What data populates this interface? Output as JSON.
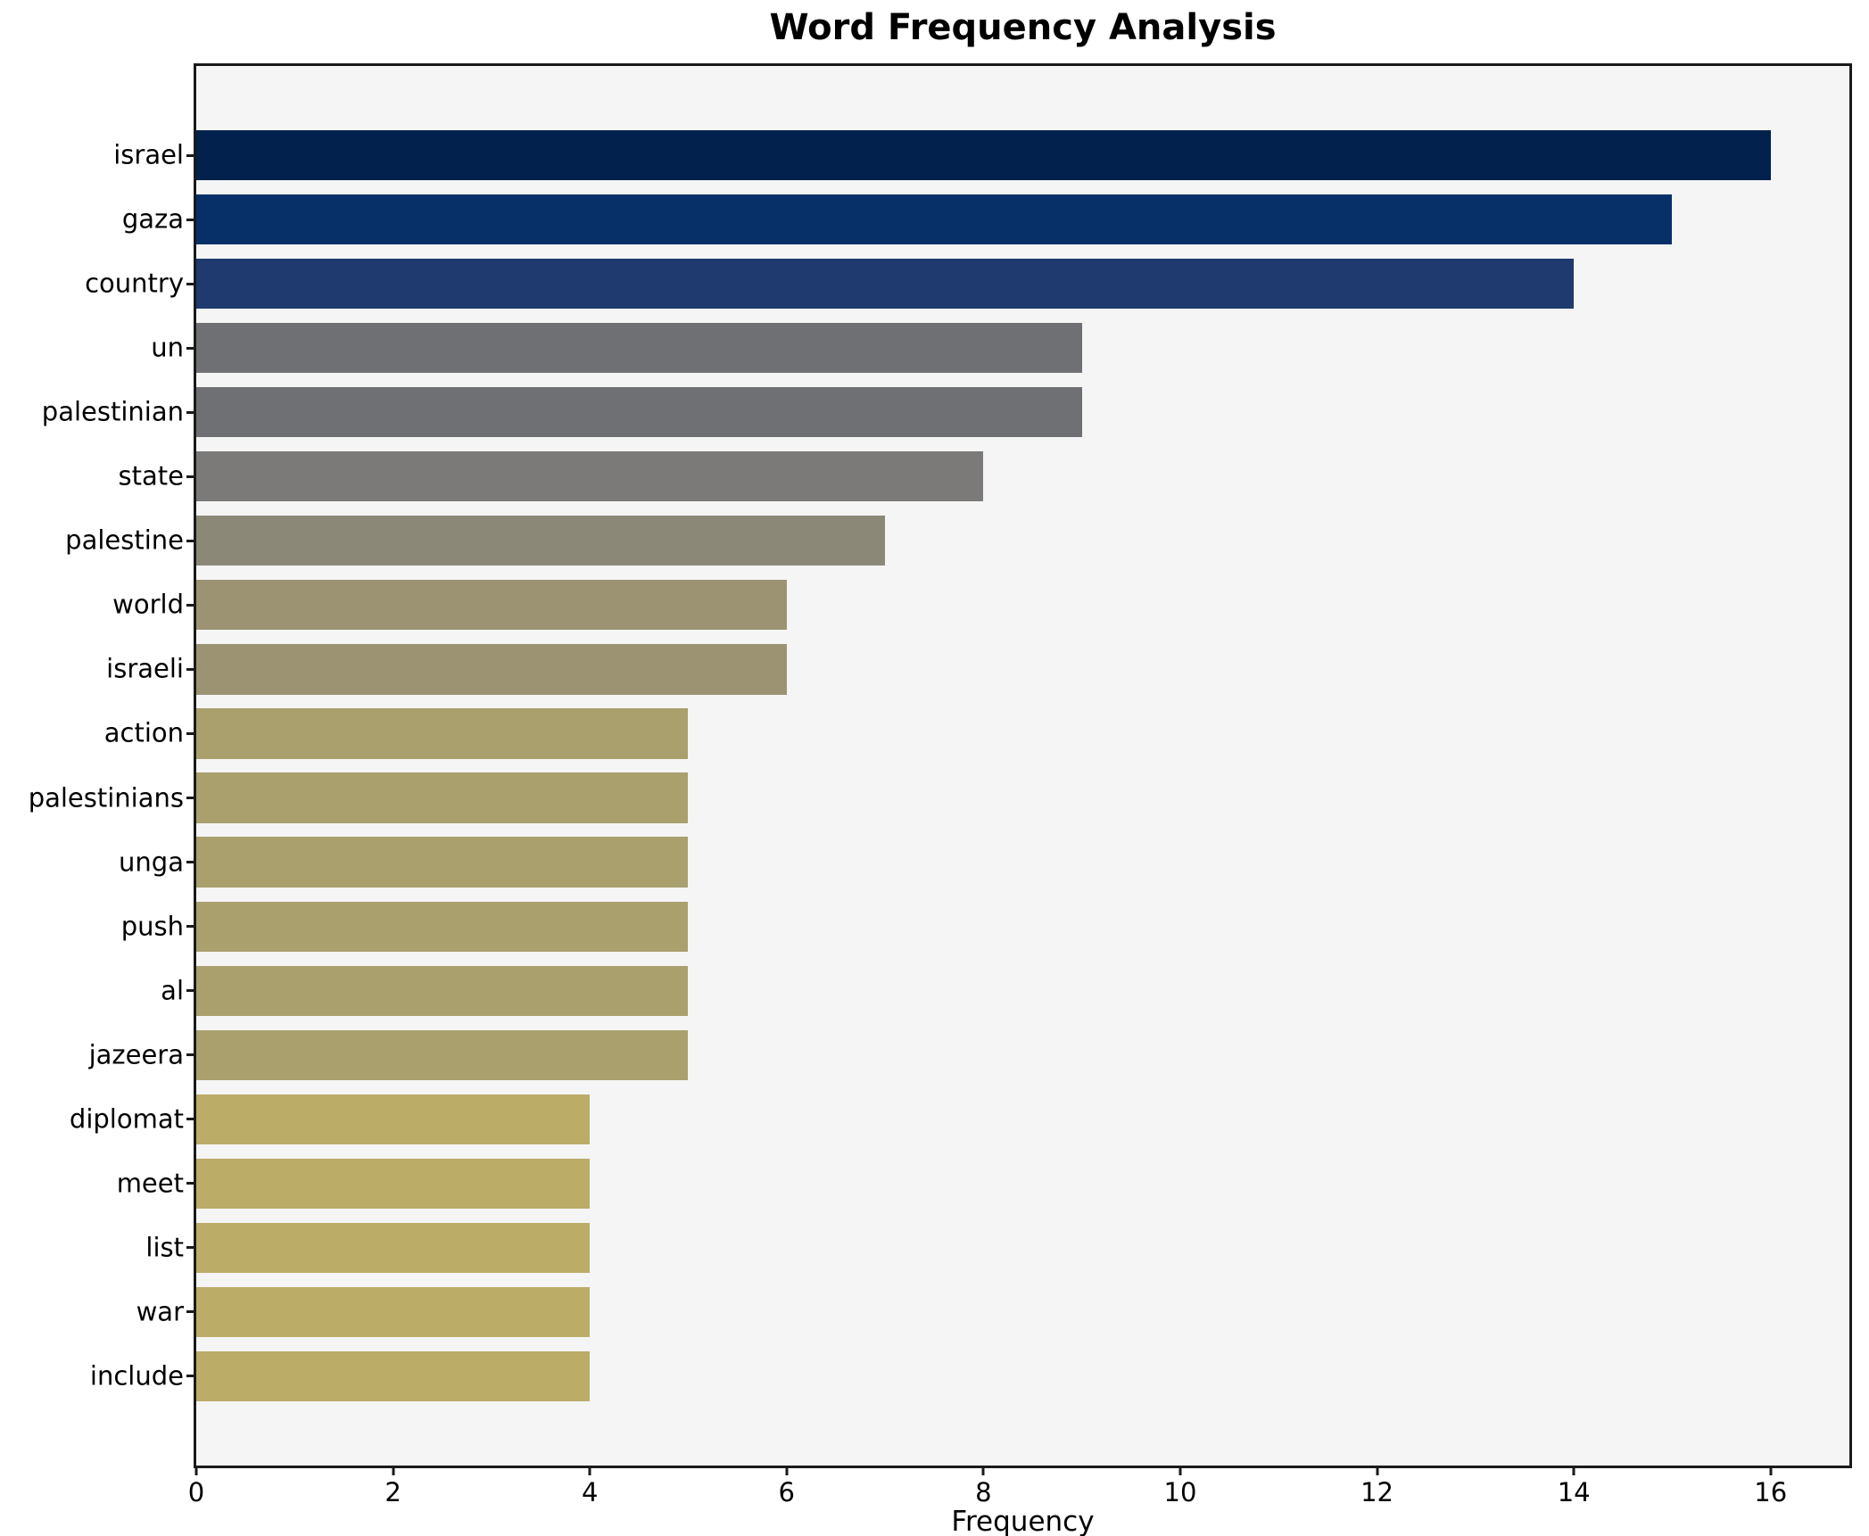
{
  "title": "Word Frequency Analysis",
  "chart_data": {
    "type": "bar",
    "orientation": "horizontal",
    "title": "Word Frequency Analysis",
    "xlabel": "Frequency",
    "ylabel": "",
    "categories": [
      "israel",
      "gaza",
      "country",
      "un",
      "palestinian",
      "state",
      "palestine",
      "world",
      "israeli",
      "action",
      "palestinians",
      "unga",
      "push",
      "al",
      "jazeera",
      "diplomat",
      "meet",
      "list",
      "war",
      "include"
    ],
    "values": [
      16,
      15,
      14,
      9,
      9,
      8,
      7,
      6,
      6,
      5,
      5,
      5,
      5,
      5,
      5,
      4,
      4,
      4,
      4,
      4
    ],
    "bar_colors": [
      "#02214d",
      "#063067",
      "#1e3a6e",
      "#6f7073",
      "#6f7073",
      "#7b7a78",
      "#8b8877",
      "#9b9372",
      "#9b9372",
      "#a9a06d",
      "#a9a06d",
      "#a9a06d",
      "#a9a06d",
      "#a9a06d",
      "#a9a06d",
      "#bbac68",
      "#bbac68",
      "#bbac68",
      "#bbac68",
      "#bbac68"
    ],
    "x_ticks": [
      0,
      2,
      4,
      6,
      8,
      10,
      12,
      14,
      16
    ],
    "xlim": [
      0,
      16.8
    ],
    "grid": false,
    "legend": null,
    "plot_background": "#f5f5f6",
    "figure_background": "#ffffff",
    "spine_color": "#1a1a1a"
  }
}
